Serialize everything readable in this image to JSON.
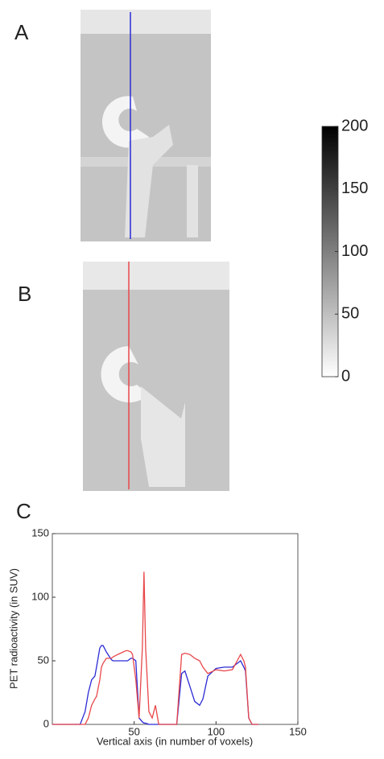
{
  "panels": {
    "a": "A",
    "b": "B",
    "c": "C"
  },
  "colorbar": {
    "lim": [
      0,
      200
    ],
    "ticks": [
      0,
      50,
      100,
      150,
      200
    ]
  },
  "chart_data": {
    "type": "line",
    "xlabel": "Vertical axis (in number of voxels)",
    "ylabel": "PET radioactivity (in SUV)",
    "x": [
      0,
      17,
      20,
      22,
      24,
      26,
      27,
      29,
      30,
      31,
      33,
      34,
      36,
      37,
      40,
      45,
      46,
      48,
      49,
      51,
      53,
      55,
      56,
      57,
      59,
      61,
      63,
      65,
      76,
      79,
      81,
      84,
      87,
      90,
      92,
      95,
      100,
      105,
      110,
      115,
      117,
      118,
      120,
      122,
      126
    ],
    "series": [
      {
        "color": "#2b2bd6",
        "values": [
          0,
          0,
          10,
          25,
          35,
          38,
          45,
          60,
          62,
          62,
          57,
          55,
          51,
          50,
          50,
          50,
          50,
          52,
          52,
          50,
          5,
          2,
          1,
          1,
          0,
          0,
          0,
          0,
          0,
          40,
          42,
          30,
          18,
          15,
          20,
          38,
          44,
          45,
          45,
          50,
          45,
          42,
          5,
          0,
          0
        ]
      },
      {
        "color": "#e8474a",
        "values": [
          0,
          0,
          0,
          5,
          15,
          20,
          22,
          35,
          45,
          48,
          52,
          52,
          52,
          53,
          55,
          58,
          58,
          57,
          55,
          35,
          5,
          60,
          120,
          60,
          10,
          5,
          15,
          0,
          0,
          55,
          56,
          55,
          52,
          50,
          45,
          40,
          43,
          42,
          43,
          55,
          50,
          45,
          5,
          0,
          0
        ]
      }
    ],
    "xlim": [
      0,
      150
    ],
    "ylim": [
      0,
      150
    ],
    "xticks": [
      50,
      100,
      150
    ],
    "yticks": [
      0,
      50,
      100,
      150
    ]
  }
}
